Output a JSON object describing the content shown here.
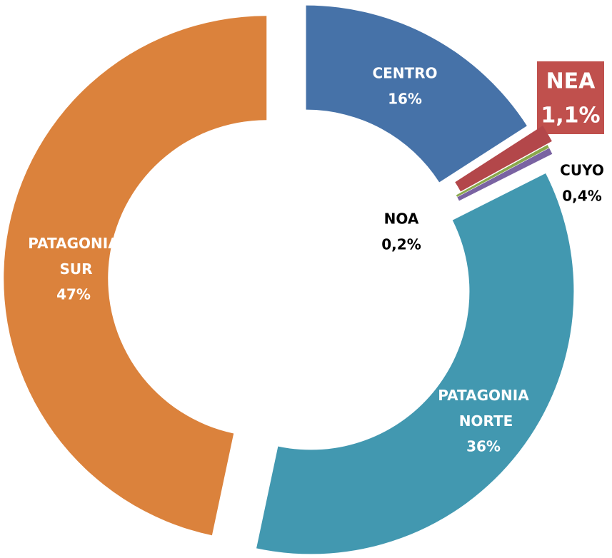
{
  "chart_data": {
    "type": "donut",
    "categories": [
      "CENTRO",
      "NEA",
      "NOA",
      "CUYO",
      "PATAGONIA NORTE",
      "PATAGONIA SUR"
    ],
    "values": [
      16,
      1.1,
      0.2,
      0.4,
      36,
      47
    ],
    "value_labels": [
      "16%",
      "1,1%",
      "0,2%",
      "0,4%",
      "36%",
      "47%"
    ],
    "colors": [
      "#4672a8",
      "#b3474a",
      "#8aa84b",
      "#7a63a2",
      "#4298b0",
      "#db823c"
    ]
  }
}
